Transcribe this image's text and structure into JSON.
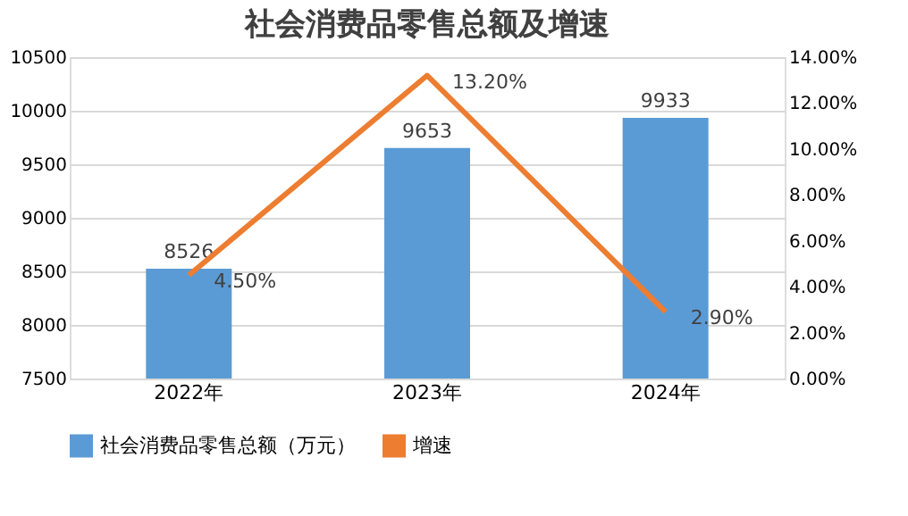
{
  "chart_data": {
    "type": "bar",
    "title": "社会消费品零售总额及增速",
    "categories": [
      "2022年",
      "2023年",
      "2024年"
    ],
    "series": [
      {
        "name": "社会消费品零售总额（万元）",
        "color": "#5b9bd5",
        "values": [
          8526,
          9653,
          9933
        ],
        "value_labels": [
          "8526",
          "9653",
          "9933"
        ]
      },
      {
        "name": "增速",
        "type": "line",
        "axis": "y2",
        "color": "#ed7d31",
        "values": [
          4.5,
          13.2,
          2.9
        ],
        "value_labels": [
          "4.50%",
          "13.20%",
          "2.90%"
        ]
      }
    ],
    "ylim": [
      7500,
      10500
    ],
    "yticks": [
      7500,
      8000,
      8500,
      9000,
      9500,
      10000,
      10500
    ],
    "y2lim": [
      0,
      14
    ],
    "y2ticks": [
      {
        "value": 0,
        "label": "0.00%"
      },
      {
        "value": 2,
        "label": "2.00%"
      },
      {
        "value": 4,
        "label": "4.00%"
      },
      {
        "value": 6,
        "label": "6.00%"
      },
      {
        "value": 8,
        "label": "8.00%"
      },
      {
        "value": 10,
        "label": "10.00%"
      },
      {
        "value": 12,
        "label": "12.00%"
      },
      {
        "value": 14,
        "label": "14.00%"
      }
    ],
    "grid": "y",
    "legend": "bottom",
    "marker": "none",
    "line_style": "solid"
  }
}
